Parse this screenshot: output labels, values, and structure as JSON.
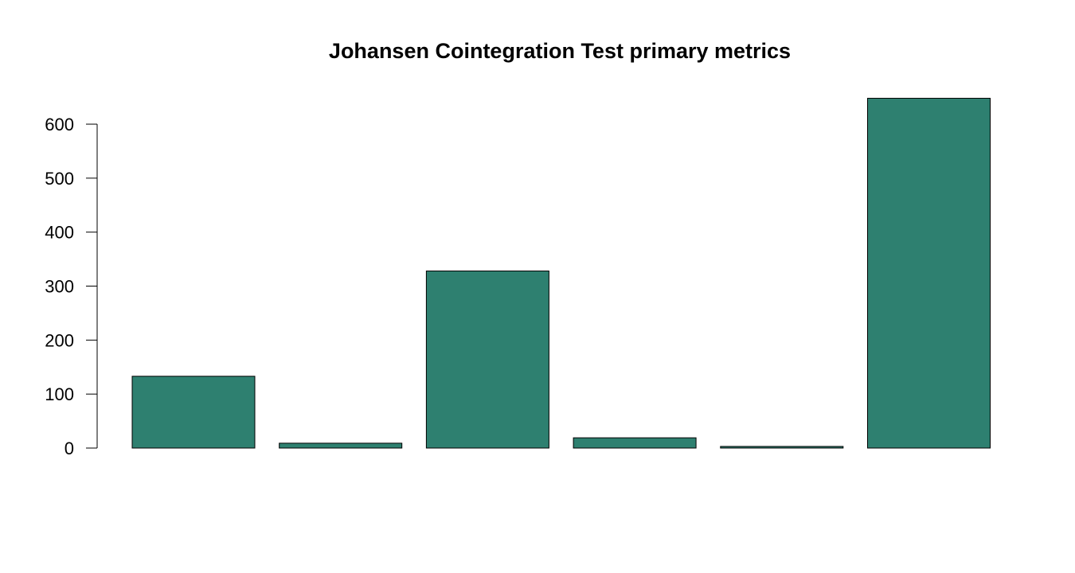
{
  "chart_data": {
    "type": "bar",
    "title": "Johansen Cointegration Test primary metrics",
    "xlabel": "",
    "ylabel": "",
    "categories": [
      "",
      "",
      "",
      "",
      "",
      ""
    ],
    "values": [
      133,
      9,
      328,
      19,
      3,
      648
    ],
    "ylim": [
      0,
      600
    ],
    "yticks": [
      0,
      100,
      200,
      300,
      400,
      500,
      600
    ],
    "bar_color": "#2e8070",
    "grid": false,
    "legend": "none"
  }
}
